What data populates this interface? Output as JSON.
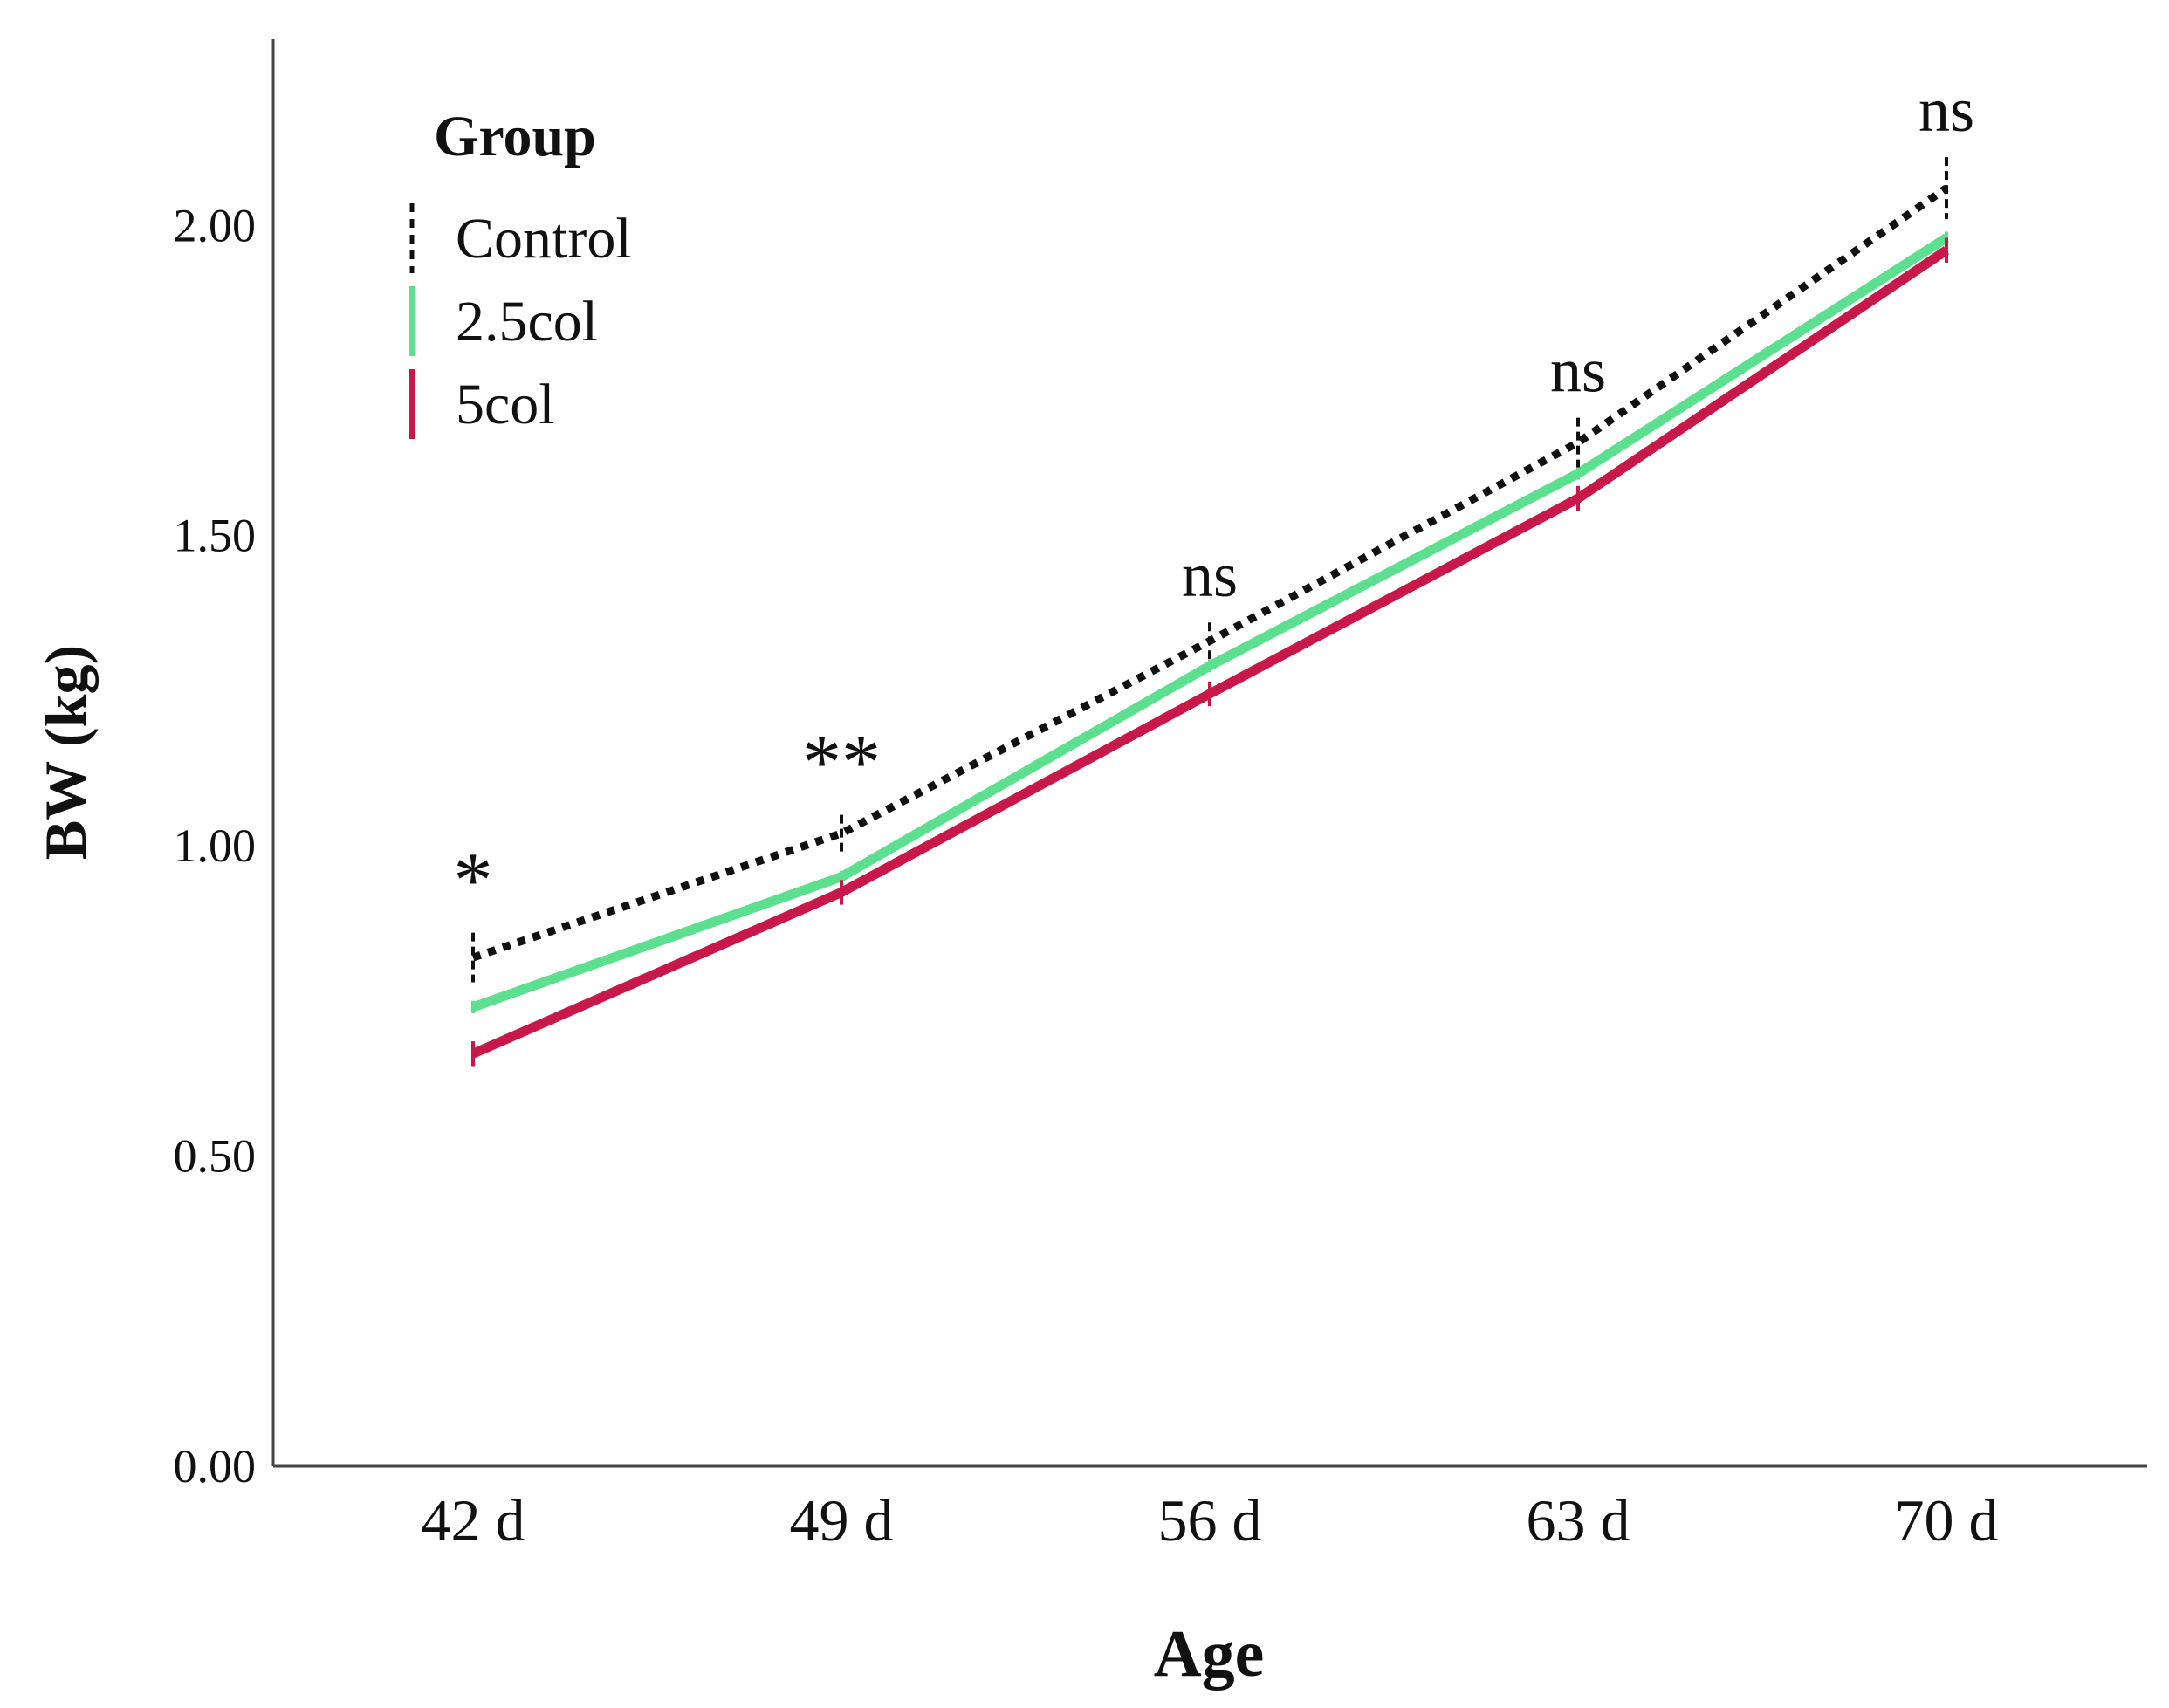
{
  "chart_data": {
    "type": "line",
    "title": "",
    "xlabel": "Age",
    "ylabel": "BW (kg)",
    "categories": [
      "42 d",
      "49 d",
      "56 d",
      "63 d",
      "70 d"
    ],
    "ylim": [
      0,
      2.3
    ],
    "yticks": [
      0,
      0.5,
      1.0,
      1.5,
      2.0
    ],
    "ytick_labels": [
      "0.00",
      "0.50",
      "1.00",
      "1.50",
      "2.00"
    ],
    "legend": {
      "title": "Group",
      "position": "top-left"
    },
    "series": [
      {
        "name": "Control",
        "style": "dotted",
        "color": "#111111",
        "values": [
          0.82,
          1.02,
          1.33,
          1.65,
          2.06
        ],
        "error": [
          0.04,
          0.03,
          0.03,
          0.04,
          0.05
        ]
      },
      {
        "name": "2.5col",
        "style": "solid",
        "color": "#5ce08f",
        "values": [
          0.74,
          0.95,
          1.29,
          1.6,
          1.98
        ],
        "error": [
          0.01,
          0.01,
          0.01,
          0.01,
          0.01
        ]
      },
      {
        "name": "5col",
        "style": "solid",
        "color": "#c8184a",
        "values": [
          0.665,
          0.925,
          1.245,
          1.56,
          1.96
        ],
        "error": [
          0.02,
          0.02,
          0.02,
          0.02,
          0.02
        ]
      }
    ],
    "annotations": [
      "*",
      "**",
      "ns",
      "ns",
      "ns"
    ]
  }
}
